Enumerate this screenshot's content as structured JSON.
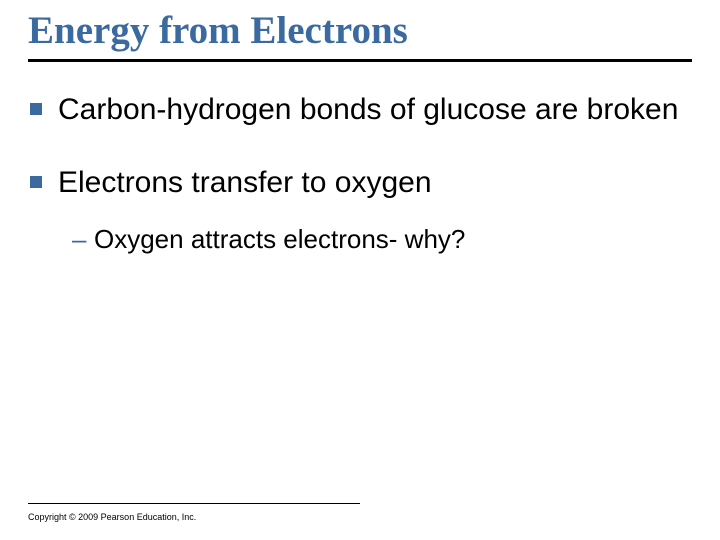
{
  "title": "Energy from Electrons",
  "title_color": "#3b6aa0",
  "rule_color": "#000000",
  "bullet_marker_color": "#3b6aa0",
  "text_color": "#000000",
  "background_color": "#ffffff",
  "title_fontsize": 39,
  "body_fontsize": 30,
  "sub_fontsize": 26,
  "bullets": [
    {
      "text": "Carbon-hydrogen bonds of glucose are broken"
    },
    {
      "text": "Electrons transfer to oxygen",
      "sub": [
        {
          "text": "Oxygen attracts electrons- why?"
        }
      ]
    }
  ],
  "copyright": "Copyright © 2009 Pearson Education, Inc."
}
